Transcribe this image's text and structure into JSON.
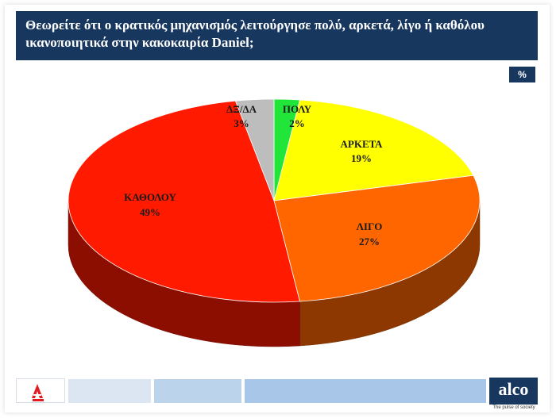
{
  "title_lines": [
    "Θεωρείτε ότι ο κρατικός μηχανισμός λειτούργησε πολύ, αρκετά, λίγο ή καθόλου",
    "ικανοποιητικά στην κακοκαιρία Daniel;"
  ],
  "unit_badge": "%",
  "chart_data": {
    "type": "pie",
    "style": "3d",
    "title": "Θεωρείτε ότι ο κρατικός μηχανισμός λειτούργησε πολύ, αρκετά, λίγο ή καθόλου ικανοποιητικά στην κακοκαιρία Daniel;",
    "categories": [
      "ΠΟΛΥ",
      "ΑΡΚΕΤΑ",
      "ΛΙΓΟ",
      "ΚΑΘΟΛΟΥ",
      "ΔΞ/ΔΑ"
    ],
    "values": [
      2,
      19,
      27,
      49,
      3
    ],
    "value_labels": [
      "2%",
      "19%",
      "27%",
      "49%",
      "3%"
    ],
    "colors": [
      "#22e53a",
      "#ffff00",
      "#ff6600",
      "#ff1a00",
      "#bdbdbd"
    ],
    "legend": "none"
  },
  "footer": {
    "colors": [
      "#dbe6f2",
      "#bcd3ec",
      "#a7c6e8"
    ]
  },
  "brand": {
    "name": "alco",
    "tagline": "The pulse of society"
  }
}
